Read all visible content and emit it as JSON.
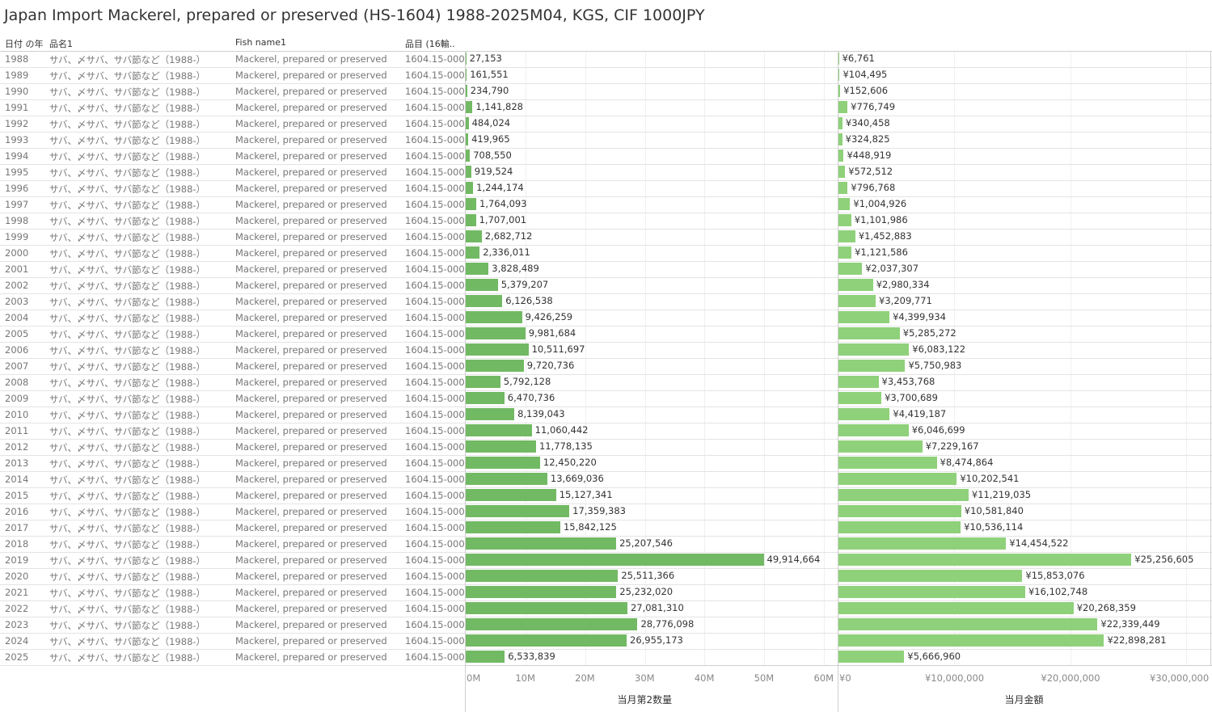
{
  "title": "Japan Import Mackerel, prepared or preserved (HS-1604) 1988-2025M04, KGS, CIF 1000JPY",
  "headers": {
    "year": "日付 の年",
    "name_jp": "品名1",
    "fish_name": "Fish name1",
    "code": "品目 (16輸.."
  },
  "row_constants": {
    "name_jp": "サバ、〆サバ、サバ節など（1988-）",
    "fish_name": "Mackerel, prepared or preserved",
    "code": "1604.15-000"
  },
  "colors": {
    "quantity_bar": "#72b963",
    "value_bar": "#8fd17a"
  },
  "chart_data": [
    {
      "type": "bar",
      "orientation": "horizontal",
      "xlabel": "当月第2数量",
      "xlim": [
        0,
        60000000
      ],
      "ticks": [
        0,
        10000000,
        20000000,
        30000000,
        40000000,
        50000000,
        60000000
      ],
      "tick_labels": [
        "0M",
        "10M",
        "20M",
        "30M",
        "40M",
        "50M",
        "60M"
      ],
      "categories": [
        "1988",
        "1989",
        "1990",
        "1991",
        "1992",
        "1993",
        "1994",
        "1995",
        "1996",
        "1997",
        "1998",
        "1999",
        "2000",
        "2001",
        "2002",
        "2003",
        "2004",
        "2005",
        "2006",
        "2007",
        "2008",
        "2009",
        "2010",
        "2011",
        "2012",
        "2013",
        "2014",
        "2015",
        "2016",
        "2017",
        "2018",
        "2019",
        "2020",
        "2021",
        "2022",
        "2023",
        "2024",
        "2025"
      ],
      "values": [
        27153,
        161551,
        234790,
        1141828,
        484024,
        419965,
        708550,
        919524,
        1244174,
        1764093,
        1707001,
        2682712,
        2336011,
        3828489,
        5379207,
        6126538,
        9426259,
        9981684,
        10511697,
        9720736,
        5792128,
        6470736,
        8139043,
        11060442,
        11778135,
        12450220,
        13669036,
        15127341,
        17359383,
        15842125,
        25207546,
        49914664,
        25511366,
        25232020,
        27081310,
        28776098,
        26955173,
        6533839
      ],
      "labels": [
        "27,153",
        "161,551",
        "234,790",
        "1,141,828",
        "484,024",
        "419,965",
        "708,550",
        "919,524",
        "1,244,174",
        "1,764,093",
        "1,707,001",
        "2,682,712",
        "2,336,011",
        "3,828,489",
        "5,379,207",
        "6,126,538",
        "9,426,259",
        "9,981,684",
        "10,511,697",
        "9,720,736",
        "5,792,128",
        "6,470,736",
        "8,139,043",
        "11,060,442",
        "11,778,135",
        "12,450,220",
        "13,669,036",
        "15,127,341",
        "17,359,383",
        "15,842,125",
        "25,207,546",
        "49,914,664",
        "25,511,366",
        "25,232,020",
        "27,081,310",
        "28,776,098",
        "26,955,173",
        "6,533,839"
      ]
    },
    {
      "type": "bar",
      "orientation": "horizontal",
      "xlabel": "当月金額",
      "xlim": [
        0,
        32000000
      ],
      "ticks": [
        0,
        10000000,
        20000000,
        30000000
      ],
      "tick_labels": [
        "¥0",
        "¥10,000,000",
        "¥20,000,000",
        "¥30,000,000"
      ],
      "categories": [
        "1988",
        "1989",
        "1990",
        "1991",
        "1992",
        "1993",
        "1994",
        "1995",
        "1996",
        "1997",
        "1998",
        "1999",
        "2000",
        "2001",
        "2002",
        "2003",
        "2004",
        "2005",
        "2006",
        "2007",
        "2008",
        "2009",
        "2010",
        "2011",
        "2012",
        "2013",
        "2014",
        "2015",
        "2016",
        "2017",
        "2018",
        "2019",
        "2020",
        "2021",
        "2022",
        "2023",
        "2024",
        "2025"
      ],
      "values": [
        6761,
        104495,
        152606,
        776749,
        340458,
        324825,
        448919,
        572512,
        796768,
        1004926,
        1101986,
        1452883,
        1121586,
        2037307,
        2980334,
        3209771,
        4399934,
        5285272,
        6083122,
        5750983,
        3453768,
        3700689,
        4419187,
        6046699,
        7229167,
        8474864,
        10202541,
        11219035,
        10581840,
        10536114,
        14454522,
        25256605,
        15853076,
        16102748,
        20268359,
        22339449,
        22898281,
        5666960
      ],
      "labels": [
        "¥6,761",
        "¥104,495",
        "¥152,606",
        "¥776,749",
        "¥340,458",
        "¥324,825",
        "¥448,919",
        "¥572,512",
        "¥796,768",
        "¥1,004,926",
        "¥1,101,986",
        "¥1,452,883",
        "¥1,121,586",
        "¥2,037,307",
        "¥2,980,334",
        "¥3,209,771",
        "¥4,399,934",
        "¥5,285,272",
        "¥6,083,122",
        "¥5,750,983",
        "¥3,453,768",
        "¥3,700,689",
        "¥4,419,187",
        "¥6,046,699",
        "¥7,229,167",
        "¥8,474,864",
        "¥10,202,541",
        "¥11,219,035",
        "¥10,581,840",
        "¥10,536,114",
        "¥14,454,522",
        "¥25,256,605",
        "¥15,853,076",
        "¥16,102,748",
        "¥20,268,359",
        "¥22,339,449",
        "¥22,898,281",
        "¥5,666,960"
      ]
    }
  ]
}
